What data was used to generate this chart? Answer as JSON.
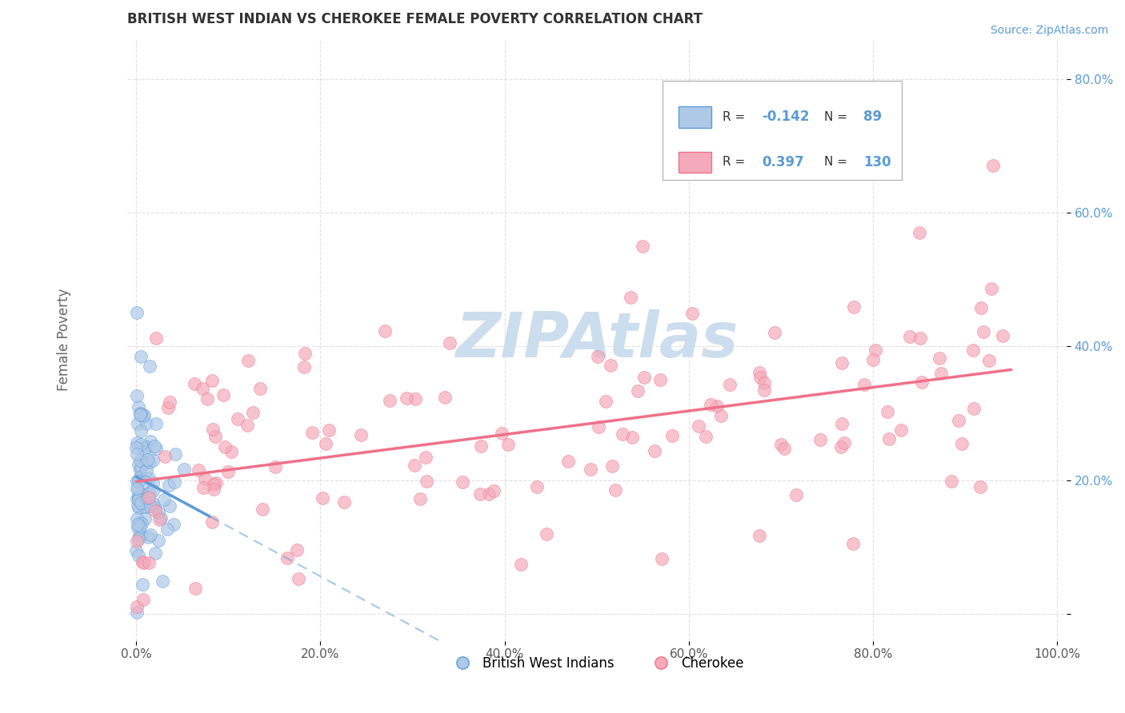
{
  "title": "BRITISH WEST INDIAN VS CHEROKEE FEMALE POVERTY CORRELATION CHART",
  "source": "Source: ZipAtlas.com",
  "ylabel": "Female Poverty",
  "blue_color": "#5b9bd5",
  "pink_color": "#f0708a",
  "blue_fill": "#aec8e8",
  "pink_fill": "#f4aabb",
  "watermark": "ZIPAtlas",
  "watermark_color": "#ccdded",
  "title_color": "#333333",
  "source_color": "#5b9bd5",
  "background_color": "#ffffff",
  "grid_color": "#cccccc",
  "seed": 42,
  "n_blue": 89,
  "n_pink": 130,
  "R_blue": -0.142,
  "R_pink": 0.397
}
